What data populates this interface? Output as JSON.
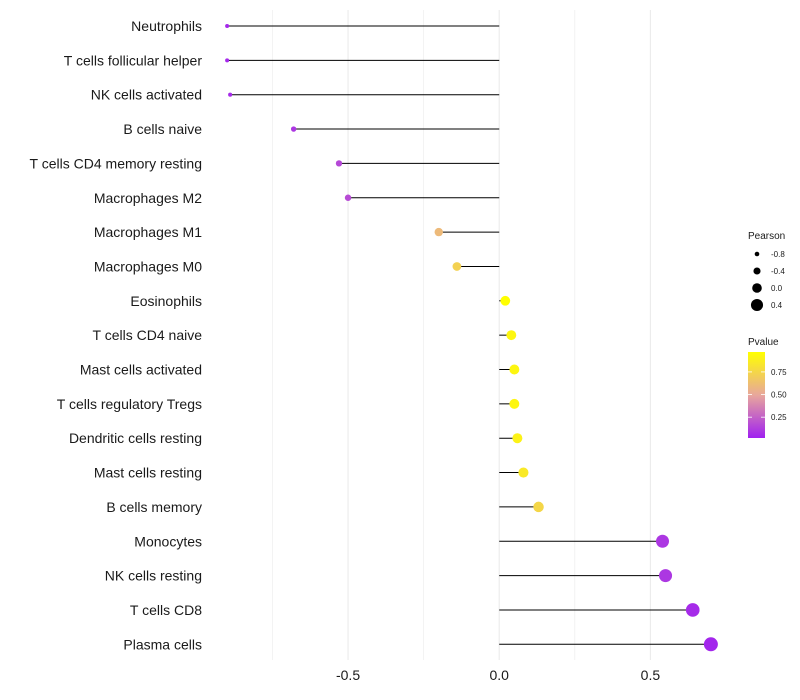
{
  "chart_data": {
    "type": "lollipop",
    "title": "",
    "xlabel": "",
    "ylabel": "",
    "xlim": [
      -0.95,
      0.75
    ],
    "xticks": [
      -0.5,
      0.0,
      0.5
    ],
    "xtick_labels": [
      "-0.5",
      "0.0",
      "0.5"
    ],
    "minor_gridlines_x": [
      -0.75,
      -0.25,
      0.25
    ],
    "rows": [
      {
        "name": "Neutrophils",
        "value": -0.9,
        "pvalue": 0.05
      },
      {
        "name": "T cells follicular helper",
        "value": -0.9,
        "pvalue": 0.05
      },
      {
        "name": "NK cells activated",
        "value": -0.89,
        "pvalue": 0.06
      },
      {
        "name": "B cells naive",
        "value": -0.68,
        "pvalue": 0.1
      },
      {
        "name": "T cells CD4 memory resting",
        "value": -0.53,
        "pvalue": 0.16
      },
      {
        "name": "Macrophages M2",
        "value": -0.5,
        "pvalue": 0.17
      },
      {
        "name": "Macrophages M1",
        "value": -0.2,
        "pvalue": 0.6
      },
      {
        "name": "Macrophages M0",
        "value": -0.14,
        "pvalue": 0.72
      },
      {
        "name": "Eosinophils",
        "value": 0.02,
        "pvalue": 0.97
      },
      {
        "name": "T cells CD4 naive",
        "value": 0.04,
        "pvalue": 0.92
      },
      {
        "name": "Mast cells activated",
        "value": 0.05,
        "pvalue": 0.92
      },
      {
        "name": "T cells regulatory  Tregs",
        "value": 0.05,
        "pvalue": 0.92
      },
      {
        "name": "Dendritic cells resting",
        "value": 0.06,
        "pvalue": 0.9
      },
      {
        "name": "Mast cells resting",
        "value": 0.08,
        "pvalue": 0.85
      },
      {
        "name": "B cells memory",
        "value": 0.13,
        "pvalue": 0.75
      },
      {
        "name": "Monocytes",
        "value": 0.54,
        "pvalue": 0.1
      },
      {
        "name": "NK cells resting",
        "value": 0.55,
        "pvalue": 0.1
      },
      {
        "name": "T cells CD8",
        "value": 0.64,
        "pvalue": 0.06
      },
      {
        "name": "Plasma cells",
        "value": 0.7,
        "pvalue": 0.04
      }
    ],
    "legend_size": {
      "title": "Pearson",
      "entries": [
        {
          "label": "-0.8",
          "value": -0.8
        },
        {
          "label": "-0.4",
          "value": -0.4
        },
        {
          "label": "0.0",
          "value": 0.0
        },
        {
          "label": "0.4",
          "value": 0.4
        }
      ]
    },
    "legend_color": {
      "title": "Pvalue",
      "labels": [
        "0.75",
        "0.50",
        "0.25"
      ],
      "values": [
        0.75,
        0.5,
        0.25
      ],
      "range": [
        0.02,
        0.97
      ],
      "low_color": "#a020f0",
      "mid_color": "#e8a79c",
      "high_color": "#ffff00"
    },
    "colors": {
      "segment": "#000000",
      "grid": "#ebebeb",
      "background": "#ffffff"
    }
  }
}
